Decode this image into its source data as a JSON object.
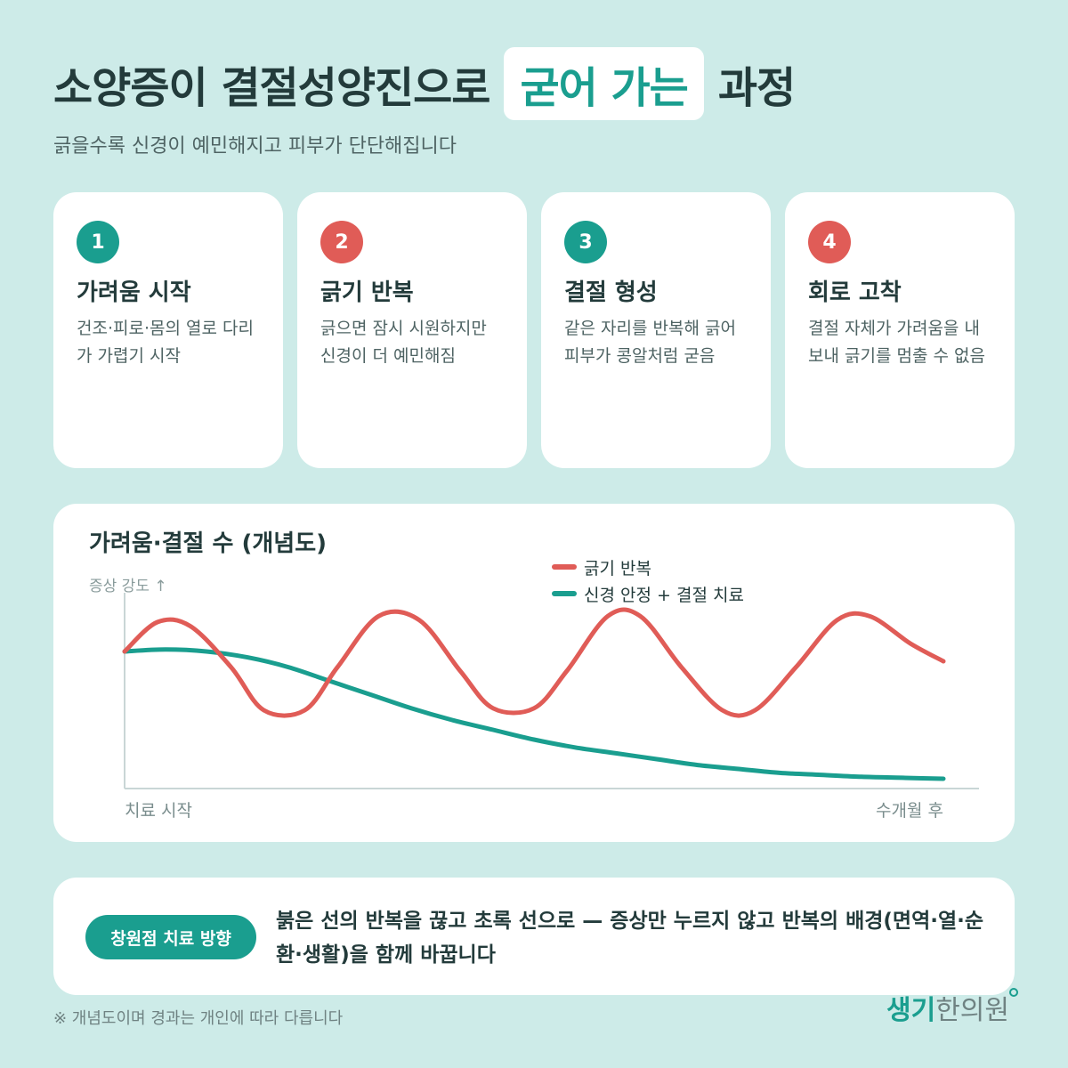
{
  "header": {
    "title_part1": "소양증이 결절성양진으로",
    "title_highlight": "굳어 가는",
    "title_part2": "과정",
    "subtitle": "긁을수록 신경이 예민해지고 피부가 단단해집니다"
  },
  "steps": [
    {
      "num": "1",
      "title": "가려움 시작",
      "desc": "건조·피로·몸의 열로 다리가 가렵기 시작",
      "color": "#1a9e8f"
    },
    {
      "num": "2",
      "title": "긁기 반복",
      "desc": "긁으면 잠시 시원하지만 신경이 더 예민해짐",
      "color": "#e05c57"
    },
    {
      "num": "3",
      "title": "결절 형성",
      "desc": "같은 자리를 반복해 긁어 피부가 콩알처럼 굳음",
      "color": "#1a9e8f"
    },
    {
      "num": "4",
      "title": "회로 고착",
      "desc": "결절 자체가 가려움을 내보내 긁기를 멈출 수 없음",
      "color": "#e05c57"
    }
  ],
  "chart_data": {
    "type": "line",
    "title": "가려움·결절 수 (개념도)",
    "ylabel": "증상 강도 ↑",
    "x_start_label": "치료 시작",
    "x_end_label": "수개월 후",
    "xlim": [
      0,
      1
    ],
    "ylim": [
      0,
      1
    ],
    "grid": false,
    "legend_position": "top-right",
    "series": [
      {
        "name": "긁기 반복",
        "color": "#e05c57",
        "x": [
          0,
          0.04,
          0.08,
          0.13,
          0.17,
          0.22,
          0.26,
          0.31,
          0.36,
          0.41,
          0.45,
          0.5,
          0.54,
          0.59,
          0.63,
          0.68,
          0.73,
          0.77,
          0.82,
          0.87,
          0.91,
          0.96,
          1.0
        ],
        "y": [
          0.7,
          0.85,
          0.83,
          0.62,
          0.4,
          0.4,
          0.62,
          0.88,
          0.86,
          0.6,
          0.41,
          0.41,
          0.6,
          0.88,
          0.88,
          0.62,
          0.4,
          0.4,
          0.62,
          0.86,
          0.88,
          0.74,
          0.65
        ]
      },
      {
        "name": "신경 안정 + 결절 치료",
        "color": "#1a9e8f",
        "x": [
          0,
          0.05,
          0.1,
          0.15,
          0.2,
          0.25,
          0.3,
          0.35,
          0.4,
          0.45,
          0.5,
          0.55,
          0.6,
          0.65,
          0.7,
          0.75,
          0.8,
          0.85,
          0.9,
          0.95,
          1.0
        ],
        "y": [
          0.7,
          0.71,
          0.7,
          0.67,
          0.62,
          0.55,
          0.48,
          0.41,
          0.35,
          0.3,
          0.25,
          0.21,
          0.18,
          0.15,
          0.12,
          0.1,
          0.08,
          0.07,
          0.06,
          0.055,
          0.05
        ]
      }
    ]
  },
  "direction": {
    "badge": "창원점 치료 방향",
    "text": "붉은 선의 반복을 끊고 초록 선으로 — 증상만 누르지 않고 반복의 배경(면역·열·순환·생활)을 함께 바꿉니다"
  },
  "footnote": "※ 개념도이며 경과는 개인에 따라 다릅니다",
  "logo": {
    "part1": "생기",
    "part2": "한의원"
  }
}
